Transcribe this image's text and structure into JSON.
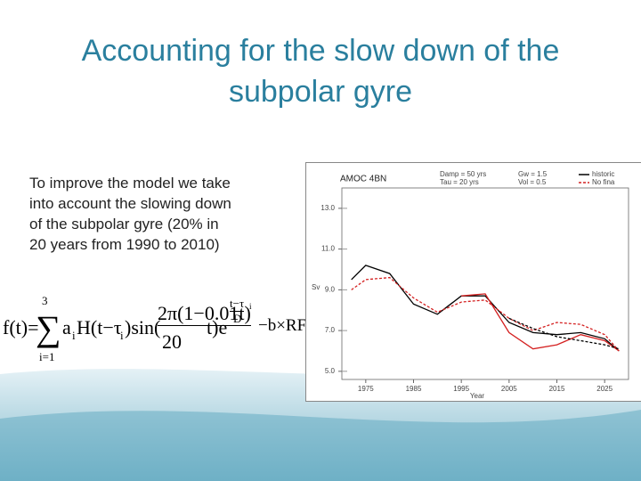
{
  "slide": {
    "title_line1": "Accounting for the slow down of the",
    "title_line2": "subpolar gyre",
    "body": [
      "To improve the model we take",
      "into account the slowing down",
      "of the subpolar gyre (20% in",
      "20 years from 1990 to 2010)"
    ]
  },
  "formula": {
    "lhs": "f(t)=",
    "sum_top": "3",
    "sum": "∑",
    "sum_bottom": "i=1",
    "a": "a",
    "a_sub": "i",
    "h": "H(t−τ",
    "h_sub": "i",
    "sin": ")sin(",
    "num": "2π(1−0.01t)",
    "den": "20",
    "t": "t)e",
    "exp_num": "t−τ",
    "exp_sub": "i",
    "exp_den": "D",
    "tail": "−b×RF(t)"
  },
  "chart_data": {
    "type": "line",
    "title": "AMOC 4BN",
    "annotations": [
      "Damp = 50 yrs",
      "Tau = 20 yrs",
      "Gw = 1.5",
      "Vol = 0.5"
    ],
    "xlabel": "Year",
    "ylabel": "Sv",
    "x": [
      1972,
      1975,
      1980,
      1985,
      1990,
      1995,
      2000,
      2005,
      2010,
      2015,
      2020,
      2025,
      2028
    ],
    "series": [
      {
        "name": "historic",
        "color": "#000000",
        "style": "solid",
        "values": [
          9.5,
          10.2,
          9.8,
          8.3,
          7.8,
          8.7,
          8.7,
          7.4,
          6.9,
          6.8,
          6.9,
          6.6,
          6.0
        ]
      },
      {
        "name": "No fina",
        "color": "#d42020",
        "style": "dashed",
        "values": [
          9.0,
          9.5,
          9.6,
          8.6,
          7.9,
          8.4,
          8.5,
          7.6,
          7.0,
          7.4,
          7.3,
          6.8,
          6.0
        ]
      },
      {
        "color": "#d42020",
        "style": "solid",
        "values": [
          null,
          null,
          null,
          null,
          null,
          8.7,
          8.8,
          6.9,
          6.1,
          6.3,
          6.8,
          6.5,
          6.0
        ]
      },
      {
        "color": "#000000",
        "style": "dashed",
        "values": [
          null,
          null,
          null,
          null,
          null,
          null,
          null,
          7.6,
          7.1,
          6.7,
          6.5,
          6.3,
          6.1
        ]
      }
    ],
    "xlim": [
      1970,
      2030
    ],
    "xticks": [
      1975,
      1985,
      1995,
      2005,
      2015,
      2025
    ],
    "ylim": [
      4.6,
      14
    ],
    "yticks": [
      {
        "value": 5,
        "label": "5.0"
      },
      {
        "value": 7,
        "label": "7.0"
      },
      {
        "value": 9,
        "label": "9.0"
      },
      {
        "value": 11,
        "label": "11.0"
      },
      {
        "value": 13,
        "label": "13.0"
      }
    ],
    "legend": "upper right"
  }
}
